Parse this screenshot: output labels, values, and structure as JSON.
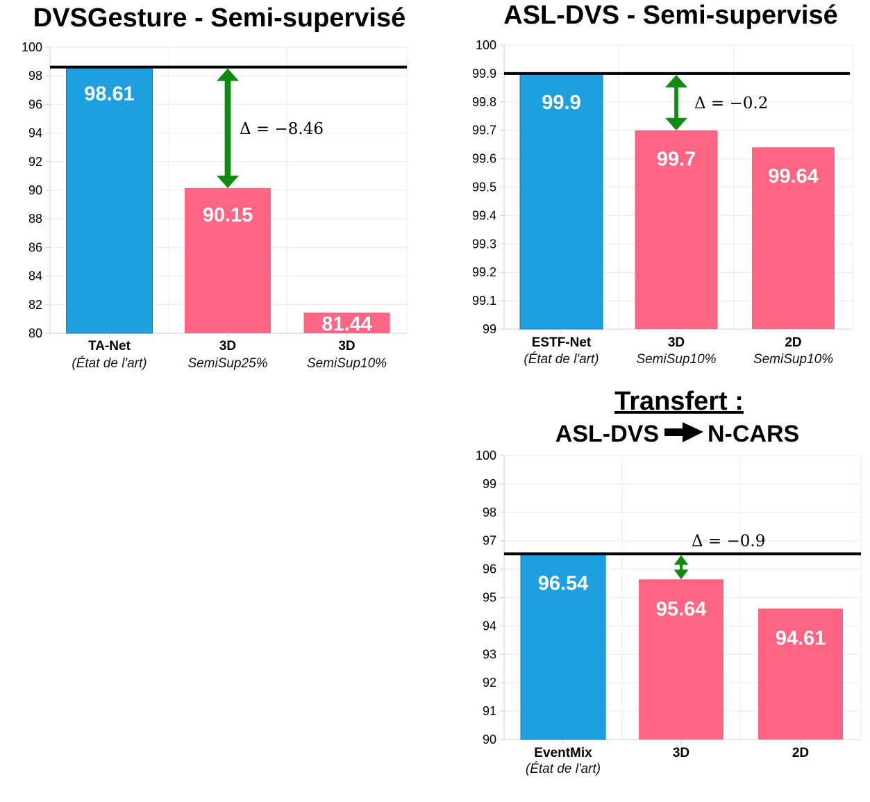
{
  "titles": {
    "t1": "DVSGesture - Semi-supervisé",
    "t2": "ASL-DVS - Semi-supervisé",
    "transfer": "Transfert :",
    "transfer_from": "ASL-DVS",
    "transfer_to": "N-CARS"
  },
  "colors": {
    "sota": "#1ea0e0",
    "ours": "#ff6482",
    "arrow": "#118a11",
    "ref_line": "#000000"
  },
  "icons": {
    "transfer_arrow": "right-arrow-icon"
  },
  "chart_data": [
    {
      "type": "bar",
      "title": "DVSGesture - Semi-supervisé",
      "ylim": [
        80,
        100
      ],
      "yticks": [
        "80",
        "82",
        "84",
        "86",
        "88",
        "90",
        "92",
        "94",
        "96",
        "98",
        "100"
      ],
      "categories": [
        "TA-Net",
        "3D",
        "3D"
      ],
      "subtitles": [
        "(État de l'art)",
        "SemiSup25%",
        "SemiSup10%"
      ],
      "values": [
        98.61,
        90.15,
        81.44
      ],
      "value_labels": [
        "98.61",
        "90.15",
        "81.44"
      ],
      "roles": [
        "sota",
        "ours",
        "ours"
      ],
      "reference": 98.61,
      "delta_label": "Δ = −8.46",
      "grid": true
    },
    {
      "type": "bar",
      "title": "ASL-DVS - Semi-supervisé",
      "ylim": [
        99,
        100
      ],
      "yticks": [
        "99",
        "99.1",
        "99.2",
        "99.3",
        "99.4",
        "99.5",
        "99.6",
        "99.7",
        "99.8",
        "99.9",
        "100"
      ],
      "categories": [
        "ESTF-Net",
        "3D",
        "2D"
      ],
      "subtitles": [
        "(État de l'art)",
        "SemiSup10%",
        "SemiSup10%"
      ],
      "values": [
        99.9,
        99.7,
        99.64
      ],
      "value_labels": [
        "99.9",
        "99.7",
        "99.64"
      ],
      "roles": [
        "sota",
        "ours",
        "ours"
      ],
      "reference": 99.9,
      "delta_label": "Δ = −0.2",
      "grid": true
    },
    {
      "type": "bar",
      "title": "Transfert : ASL-DVS → N-CARS",
      "ylim": [
        90,
        100
      ],
      "yticks": [
        "90",
        "91",
        "92",
        "93",
        "94",
        "95",
        "96",
        "97",
        "98",
        "99",
        "100"
      ],
      "categories": [
        "EventMix",
        "3D",
        "2D"
      ],
      "subtitles": [
        "(État de l'art)",
        "",
        ""
      ],
      "values": [
        96.54,
        95.64,
        94.61
      ],
      "value_labels": [
        "96.54",
        "95.64",
        "94.61"
      ],
      "roles": [
        "sota",
        "ours",
        "ours"
      ],
      "reference": 96.54,
      "delta_label": "Δ = −0.9",
      "grid": true
    }
  ]
}
